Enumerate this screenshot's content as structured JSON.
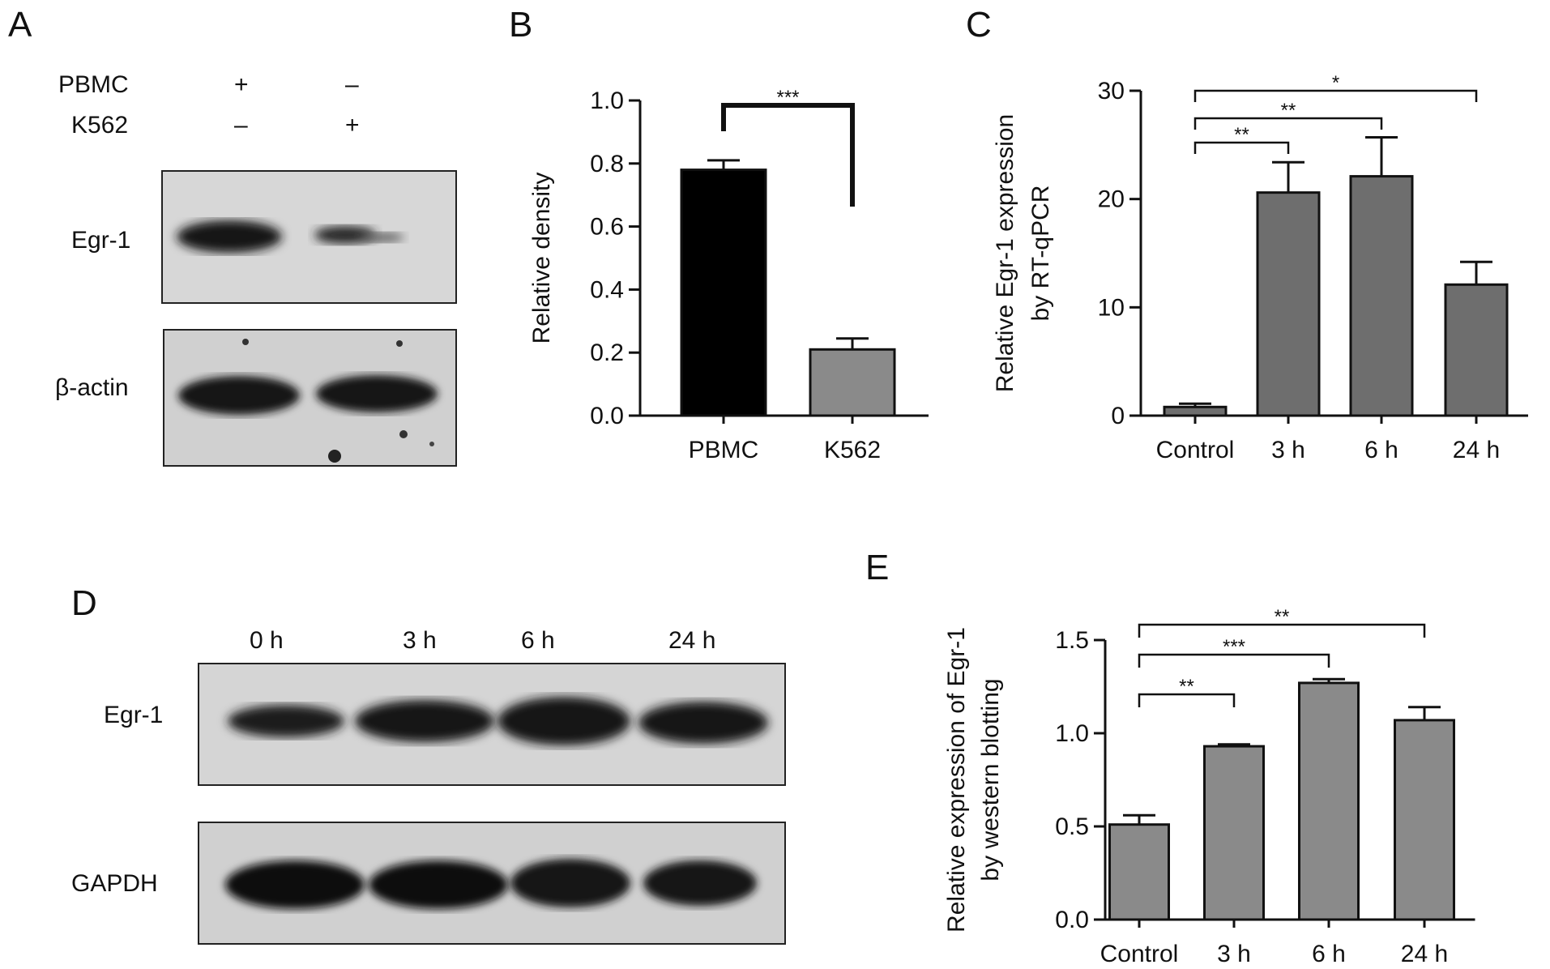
{
  "panels": {
    "A": {
      "letter": "A",
      "row_labels": [
        "PBMC",
        "K562"
      ],
      "signs": [
        [
          "+",
          "–"
        ],
        [
          "–",
          "+"
        ]
      ],
      "blot_labels": [
        "Egr-1",
        "β-actin"
      ]
    },
    "D": {
      "letter": "D",
      "lanes": [
        "0 h",
        "3 h",
        "6 h",
        "24 h"
      ],
      "blot_labels": [
        "Egr-1",
        "GAPDH"
      ]
    }
  },
  "chart_data": [
    {
      "panel": "B",
      "type": "bar",
      "categories": [
        "PBMC",
        "K562"
      ],
      "values": [
        0.78,
        0.21
      ],
      "errors": [
        0.03,
        0.035
      ],
      "bar_colors": [
        "#000000",
        "#8a8a8a"
      ],
      "ylabel": "Relative density",
      "ylim": [
        0,
        1.0
      ],
      "yticks": [
        0.0,
        0.2,
        0.4,
        0.6,
        0.8,
        1.0
      ],
      "ytick_labels": [
        "0.0",
        "0.2",
        "0.4",
        "0.6",
        "0.8",
        "1.0"
      ],
      "significance": [
        {
          "from": 0,
          "to": 1,
          "label": "***"
        }
      ]
    },
    {
      "panel": "C",
      "type": "bar",
      "categories": [
        "Control",
        "3 h",
        "6 h",
        "24 h"
      ],
      "values": [
        0.8,
        20.6,
        22.1,
        12.1
      ],
      "errors": [
        0.3,
        2.8,
        3.6,
        2.1
      ],
      "bar_colors": [
        "#6e6e6e",
        "#6e6e6e",
        "#6e6e6e",
        "#6e6e6e"
      ],
      "ylabel": [
        "Relative Egr-1 expression",
        "by RT-qPCR"
      ],
      "ylim": [
        0,
        30
      ],
      "yticks": [
        0,
        10,
        20,
        30
      ],
      "ytick_labels": [
        "0",
        "10",
        "20",
        "30"
      ],
      "significance": [
        {
          "from": 0,
          "to": 1,
          "label": "**"
        },
        {
          "from": 0,
          "to": 2,
          "label": "**"
        },
        {
          "from": 0,
          "to": 3,
          "label": "*"
        }
      ]
    },
    {
      "panel": "E",
      "type": "bar",
      "categories": [
        "Control",
        "3 h",
        "6 h",
        "24 h"
      ],
      "values": [
        0.51,
        0.93,
        1.27,
        1.07
      ],
      "errors": [
        0.05,
        0.01,
        0.02,
        0.07
      ],
      "bar_colors": [
        "#8a8a8a",
        "#8a8a8a",
        "#8a8a8a",
        "#8a8a8a"
      ],
      "ylabel": [
        "Relative expression of Egr-1",
        "by western blotting"
      ],
      "ylim": [
        0,
        1.5
      ],
      "yticks": [
        0.0,
        0.5,
        1.0,
        1.5
      ],
      "ytick_labels": [
        "0.0",
        "0.5",
        "1.0",
        "1.5"
      ],
      "significance": [
        {
          "from": 0,
          "to": 1,
          "label": "**"
        },
        {
          "from": 0,
          "to": 2,
          "label": "***"
        },
        {
          "from": 0,
          "to": 3,
          "label": "**"
        }
      ]
    }
  ],
  "chart_letters": [
    "B",
    "C",
    "E"
  ]
}
